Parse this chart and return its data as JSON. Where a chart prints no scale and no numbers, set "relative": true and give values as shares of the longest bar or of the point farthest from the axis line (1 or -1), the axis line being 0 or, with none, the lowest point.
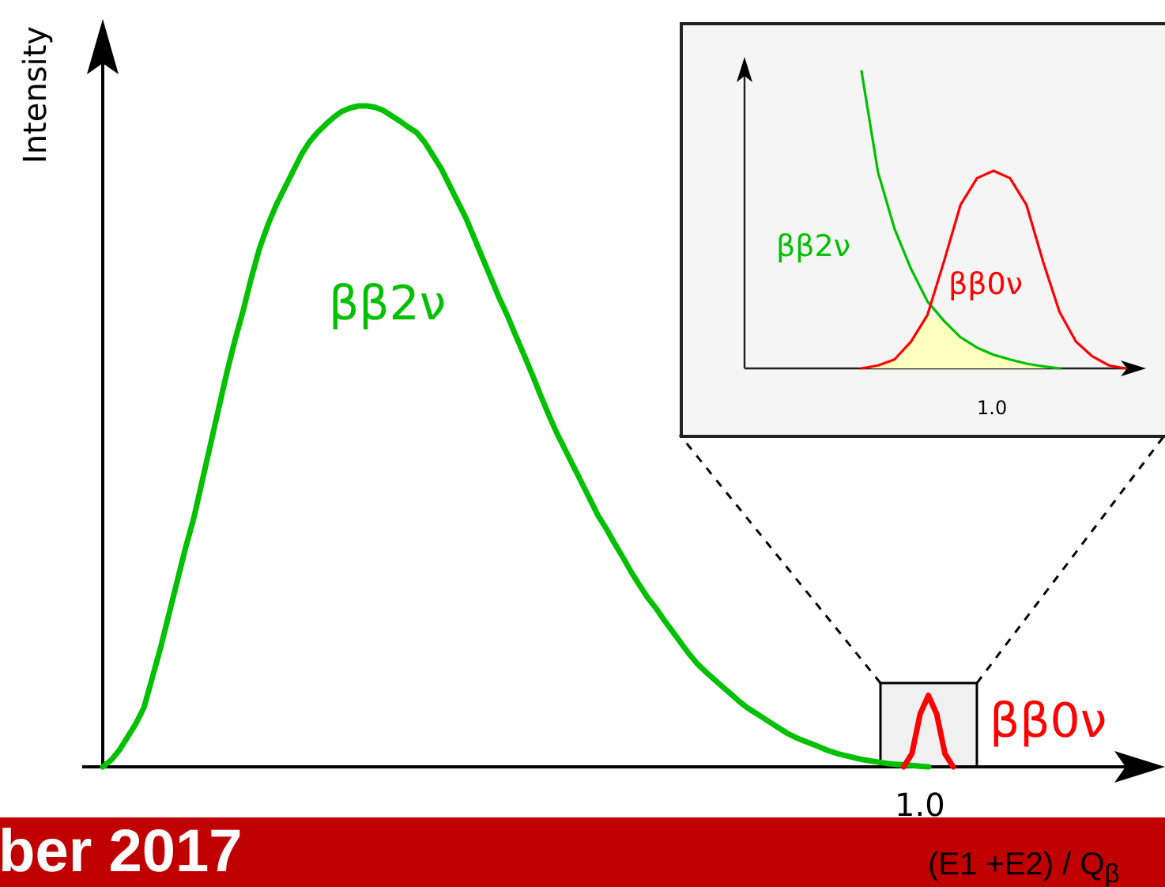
{
  "chart_data": [
    {
      "type": "line",
      "relative": true,
      "ylabel": "Intensity",
      "xlabel": "(E1 +E2) / Q$_{β}$",
      "annotations": [
        "ber 2017",
        "1.0"
      ],
      "categories": [
        null,
        null,
        null,
        null,
        null,
        null,
        null,
        null,
        null,
        null,
        null,
        null,
        null,
        null,
        null,
        null,
        null,
        null,
        null,
        null,
        null,
        null,
        null,
        null,
        null,
        null,
        null,
        null,
        null,
        null,
        null,
        null,
        null,
        null,
        null,
        null,
        null,
        null,
        null,
        null,
        null,
        null,
        null,
        null,
        null,
        null,
        null,
        null,
        null,
        null,
        null,
        null,
        null,
        null,
        null,
        null,
        null,
        null,
        null,
        null,
        null,
        null,
        null,
        null,
        null,
        null,
        null,
        null,
        null,
        null,
        null,
        null,
        null,
        null,
        null,
        null,
        null,
        null,
        null,
        null,
        null,
        null,
        null,
        null,
        null,
        null,
        null,
        null,
        null,
        null,
        null,
        null,
        null,
        null,
        null,
        null,
        null,
        null,
        null,
        null,
        null,
        null,
        null,
        null
      ],
      "series": [
        {
          "name": "ββ2ν",
          "color": "#00c000",
          "values": [
            0,
            0.01,
            0.025,
            0.045,
            0.065,
            0.09,
            0.135,
            0.18,
            0.23,
            0.28,
            0.33,
            0.375,
            0.43,
            0.485,
            0.54,
            0.595,
            0.645,
            0.69,
            0.74,
            0.785,
            0.82,
            0.85,
            0.875,
            0.9,
            0.925,
            0.945,
            0.96,
            0.972,
            0.983,
            0.992,
            0.997,
            1,
            1,
            0.998,
            0.993,
            0.985,
            0.977,
            0.968,
            0.96,
            0.945,
            0.925,
            0.905,
            0.88,
            0.855,
            0.83,
            0.8,
            0.77,
            0.74,
            0.71,
            0.683,
            0.653,
            0.624,
            0.594,
            0.563,
            0.533,
            0.505,
            0.48,
            0.455,
            0.43,
            0.405,
            0.38,
            0.36,
            0.338,
            0.317,
            0.295,
            0.275,
            0.256,
            0.24,
            0.222,
            0.205,
            0.188,
            0.171,
            0.156,
            0.144,
            0.133,
            0.122,
            0.111,
            0.1,
            0.09,
            0.082,
            0.074,
            0.066,
            0.058,
            0.05,
            0.044,
            0.039,
            0.034,
            0.029,
            0.024,
            0.02,
            0.017,
            0.014,
            0.011,
            0.009,
            0.007,
            0.005,
            0.004,
            0.003,
            0.002,
            0.001,
            0,
            null,
            null,
            null
          ]
        },
        {
          "name": "ββ0ν",
          "color": "#ff0000",
          "values": [
            null,
            null,
            null,
            null,
            null,
            null,
            null,
            null,
            null,
            null,
            null,
            null,
            null,
            null,
            null,
            null,
            null,
            null,
            null,
            null,
            null,
            null,
            null,
            null,
            null,
            null,
            null,
            null,
            null,
            null,
            null,
            null,
            null,
            null,
            null,
            null,
            null,
            null,
            null,
            null,
            null,
            null,
            null,
            null,
            null,
            null,
            null,
            null,
            null,
            null,
            null,
            null,
            null,
            null,
            null,
            null,
            null,
            null,
            null,
            null,
            null,
            null,
            null,
            null,
            null,
            null,
            null,
            null,
            null,
            null,
            null,
            null,
            null,
            null,
            null,
            null,
            null,
            null,
            null,
            null,
            null,
            null,
            null,
            null,
            null,
            null,
            null,
            null,
            null,
            null,
            null,
            null,
            null,
            null,
            null,
            null,
            null,
            0,
            0.02,
            0.08,
            0.108,
            0.08,
            0.02,
            0
          ]
        }
      ]
    },
    {
      "type": "line",
      "relative": true,
      "annotations": [
        "1.0"
      ],
      "categories": [
        null,
        null,
        null,
        null,
        null,
        null,
        null,
        null,
        null,
        null,
        null,
        null,
        null,
        null,
        null,
        null,
        null
      ],
      "series": [
        {
          "name": "ββ2ν",
          "color": "#00c000",
          "values": [
            1,
            0.66,
            0.47,
            0.335,
            0.225,
            0.16,
            0.105,
            0.07,
            0.046,
            0.03,
            0.016,
            0.007,
            0,
            null,
            null,
            null,
            null
          ]
        },
        {
          "name": "ββ0ν",
          "color": "#ff0000",
          "values": [
            0,
            0.01,
            0.03,
            0.09,
            0.18,
            0.36,
            0.55,
            0.64,
            0.665,
            0.64,
            0.55,
            0.36,
            0.19,
            0.09,
            0.04,
            0.01,
            0
          ]
        },
        {
          "type": "area",
          "color": "#ffffc0",
          "values": [
            0,
            0.01,
            0.03,
            0.09,
            0.18,
            0.16,
            0.105,
            0.07,
            0.046,
            0.03,
            0.016,
            0.007,
            0,
            null,
            null,
            null,
            null
          ]
        }
      ]
    }
  ]
}
